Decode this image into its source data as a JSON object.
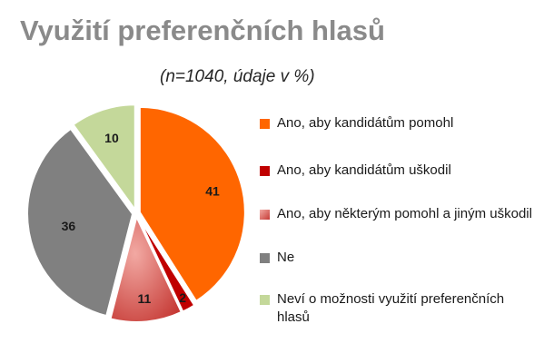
{
  "title": "Využití preferenčních hlasů",
  "subtitle": "(n=1040, údaje v %)",
  "chart_data": {
    "type": "pie",
    "title": "Využití preferenčních hlasů",
    "subtitle": "(n=1040, údaje v %)",
    "categories": [
      "Ano, aby kandidátům pomohl",
      "Ano, aby kandidátům uškodil",
      "Ano, aby některým pomohl a jiným uškodil",
      "Ne",
      "Neví o možnosti využití preferenčních hlasů"
    ],
    "values": [
      41,
      2,
      11,
      36,
      10
    ],
    "colors": [
      "#ff6600",
      "#c00000",
      "#d9534f",
      "#808080",
      "#c4d89a"
    ],
    "legend_position": "right",
    "exploded": [
      true,
      true,
      true,
      true,
      true
    ]
  },
  "legend": [
    {
      "label": "Ano, aby kandidátům pomohl",
      "color": "#ff6600"
    },
    {
      "label": "Ano, aby kandidátům uškodil",
      "color": "#c00000"
    },
    {
      "label": "Ano, aby některým pomohl a jiným uškodil",
      "color": "#d9534f"
    },
    {
      "label": "Ne",
      "color": "#808080"
    },
    {
      "label": "Neví o možnosti využití preferenčních hlasů",
      "color": "#c4d89a"
    }
  ]
}
